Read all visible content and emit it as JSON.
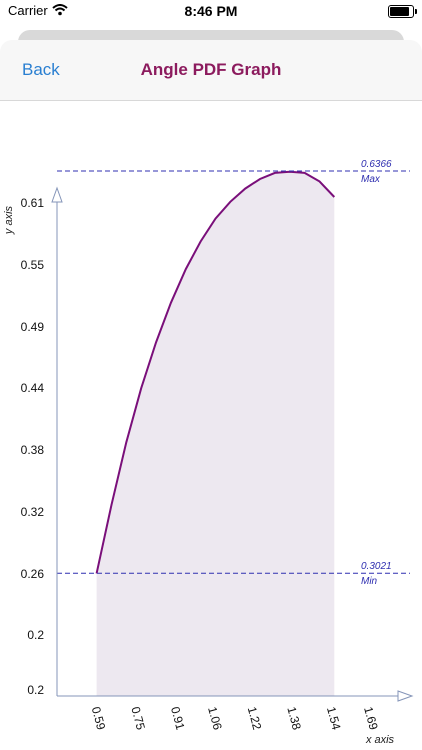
{
  "status": {
    "carrier": "Carrier",
    "time": "8:46 PM"
  },
  "nav": {
    "back_label": "Back",
    "title": "Angle PDF Graph"
  },
  "chart_data": {
    "type": "area",
    "xlabel": "x axis",
    "ylabel": "y axis",
    "xlim": [
      0.43,
      1.69
    ],
    "ylim": [
      0.2,
      0.61
    ],
    "x_ticks": [
      "0.59",
      "0.75",
      "0.91",
      "1.06",
      "1.22",
      "1.38",
      "1.54",
      "1.69"
    ],
    "x_tick_values": [
      0.59,
      0.75,
      0.91,
      1.06,
      1.22,
      1.38,
      1.54,
      1.69
    ],
    "y_ticks": [
      "0.61",
      "0.55",
      "0.49",
      "0.44",
      "0.38",
      "0.32",
      "0.26",
      "0.2",
      "0.2"
    ],
    "y_tick_values": [
      0.61,
      0.55,
      0.49,
      0.44,
      0.38,
      0.32,
      0.26,
      0.2,
      0.2
    ],
    "series": [
      {
        "x": [
          0.59,
          0.65,
          0.71,
          0.77,
          0.83,
          0.89,
          0.95,
          1.01,
          1.07,
          1.13,
          1.19,
          1.25,
          1.31,
          1.37,
          1.43,
          1.49,
          1.55
        ],
        "values": [
          0.302,
          0.359,
          0.411,
          0.456,
          0.494,
          0.527,
          0.555,
          0.578,
          0.597,
          0.611,
          0.622,
          0.63,
          0.635,
          0.636,
          0.635,
          0.628,
          0.615
        ]
      }
    ],
    "reference_lines": [
      {
        "value": 0.6366,
        "value_label": "0.6366",
        "label": "Max"
      },
      {
        "value": 0.3021,
        "value_label": "0.3021",
        "label": "Min"
      }
    ],
    "colors": {
      "curve": "#7a0f7a",
      "fill": "#ede8f0",
      "reference": "#2f2fb0",
      "axis": "#8494b8"
    },
    "grid": false
  }
}
